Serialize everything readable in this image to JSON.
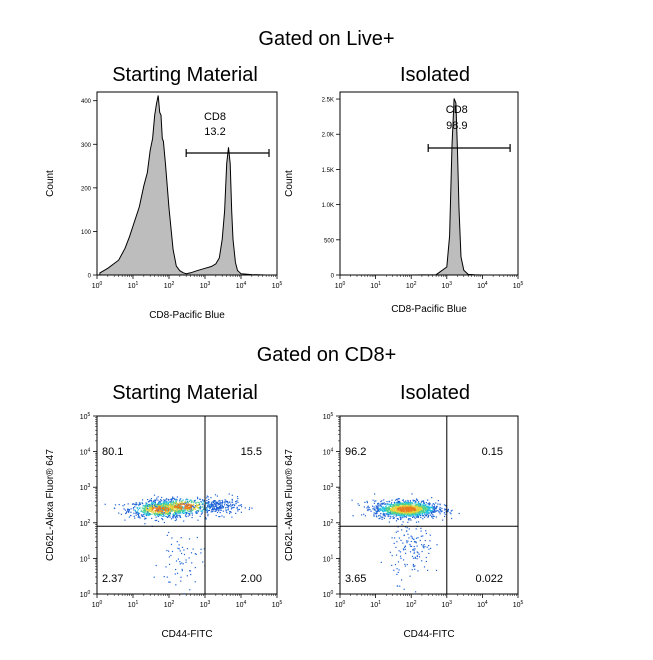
{
  "headings": {
    "top": "Gated on Live+",
    "bottom": "Gated on CD8+"
  },
  "panel_titles": {
    "hist_left": "Starting Material",
    "hist_right": "Isolated",
    "dot_left": "Starting Material",
    "dot_right": "Isolated"
  },
  "chart_data": [
    {
      "type": "area",
      "title": "Starting Material",
      "xlabel": "CD8-Pacific Blue",
      "ylabel": "Count",
      "x_scale": "log",
      "xlim": [
        1,
        100000
      ],
      "ylim": [
        0,
        420
      ],
      "x_ticks": [
        "10",
        "1",
        "2",
        "3",
        "4",
        "5"
      ],
      "y_ticks": [
        "0",
        "100",
        "200",
        "300",
        "400"
      ],
      "y_tick_values": [
        0,
        100,
        200,
        300,
        400
      ],
      "gate": {
        "label": "CD8",
        "value": "13.2",
        "range": [
          300,
          60000
        ]
      },
      "series": [
        {
          "x": [
            1.2,
            2,
            4,
            6,
            8,
            10,
            15,
            20,
            25,
            30,
            35,
            40,
            45,
            50,
            55,
            60,
            65,
            70,
            80,
            100,
            130,
            160,
            200,
            250,
            300,
            400,
            600,
            1000,
            1500,
            2000,
            2500,
            3000,
            3500,
            4000,
            4500,
            5000,
            5500,
            6000,
            7000,
            8000,
            10000,
            20000,
            50000
          ],
          "y": [
            5,
            15,
            35,
            60,
            90,
            110,
            160,
            200,
            240,
            280,
            320,
            360,
            400,
            405,
            380,
            360,
            320,
            300,
            260,
            150,
            60,
            20,
            10,
            5,
            3,
            5,
            10,
            15,
            20,
            25,
            40,
            80,
            150,
            250,
            300,
            250,
            150,
            80,
            30,
            10,
            3,
            1,
            0
          ]
        }
      ]
    },
    {
      "type": "area",
      "title": "Isolated",
      "xlabel": "CD8-Pacific Blue",
      "ylabel": "Count",
      "x_scale": "log",
      "xlim": [
        1,
        100000
      ],
      "ylim": [
        0,
        2600
      ],
      "x_ticks": [
        "10",
        "1",
        "2",
        "3",
        "4",
        "5"
      ],
      "y_ticks": [
        "0",
        "500",
        "1.0K",
        "1.5K",
        "2.0K",
        "2.5K"
      ],
      "y_tick_values": [
        0,
        500,
        1000,
        1500,
        2000,
        2500
      ],
      "gate": {
        "label": "CD8",
        "value": "98.9",
        "range": [
          300,
          60000
        ]
      },
      "series": [
        {
          "x": [
            1.2,
            100,
            500,
            1000,
            1200,
            1400,
            1600,
            1800,
            2000,
            2200,
            2500,
            3000,
            4000,
            6000,
            10000,
            50000
          ],
          "y": [
            0,
            0,
            5,
            100,
            600,
            1800,
            2550,
            2400,
            1800,
            900,
            300,
            60,
            10,
            2,
            0,
            0
          ]
        }
      ]
    },
    {
      "type": "scatter",
      "title": "Starting Material",
      "xlabel": "CD44-FITC",
      "ylabel": "CD62L-Alexa Fluor® 647",
      "x_scale": "log",
      "y_scale": "log",
      "xlim": [
        1,
        100000
      ],
      "ylim": [
        1,
        100000
      ],
      "x_ticks": [
        "10",
        "1",
        "2",
        "3",
        "4",
        "5"
      ],
      "y_ticks": [
        "10",
        "1",
        "2",
        "3",
        "4",
        "5"
      ],
      "quadrant_divider": {
        "x": 1000,
        "y": 80
      },
      "quadrants": {
        "top_left": "80.1",
        "top_right": "15.5",
        "bottom_left": "2.37",
        "bottom_right": "2.00"
      },
      "population_centers": [
        {
          "x": 60,
          "y": 250,
          "weight": 0.55
        },
        {
          "x": 250,
          "y": 300,
          "weight": 0.25
        },
        {
          "x": 2500,
          "y": 300,
          "weight": 0.15
        },
        {
          "x": 200,
          "y": 8,
          "weight": 0.05
        }
      ]
    },
    {
      "type": "scatter",
      "title": "Isolated",
      "xlabel": "CD44-FITC",
      "ylabel": "CD62L-Alexa Fluor® 647",
      "x_scale": "log",
      "y_scale": "log",
      "xlim": [
        1,
        100000
      ],
      "ylim": [
        1,
        100000
      ],
      "x_ticks": [
        "10",
        "1",
        "2",
        "3",
        "4",
        "5"
      ],
      "y_ticks": [
        "10",
        "1",
        "2",
        "3",
        "4",
        "5"
      ],
      "quadrant_divider": {
        "x": 1000,
        "y": 80
      },
      "quadrants": {
        "top_left": "96.2",
        "top_right": "0.15",
        "bottom_left": "3.65",
        "bottom_right": "0.022"
      },
      "population_centers": [
        {
          "x": 70,
          "y": 250,
          "weight": 0.9
        },
        {
          "x": 100,
          "y": 20,
          "weight": 0.1
        }
      ]
    }
  ]
}
